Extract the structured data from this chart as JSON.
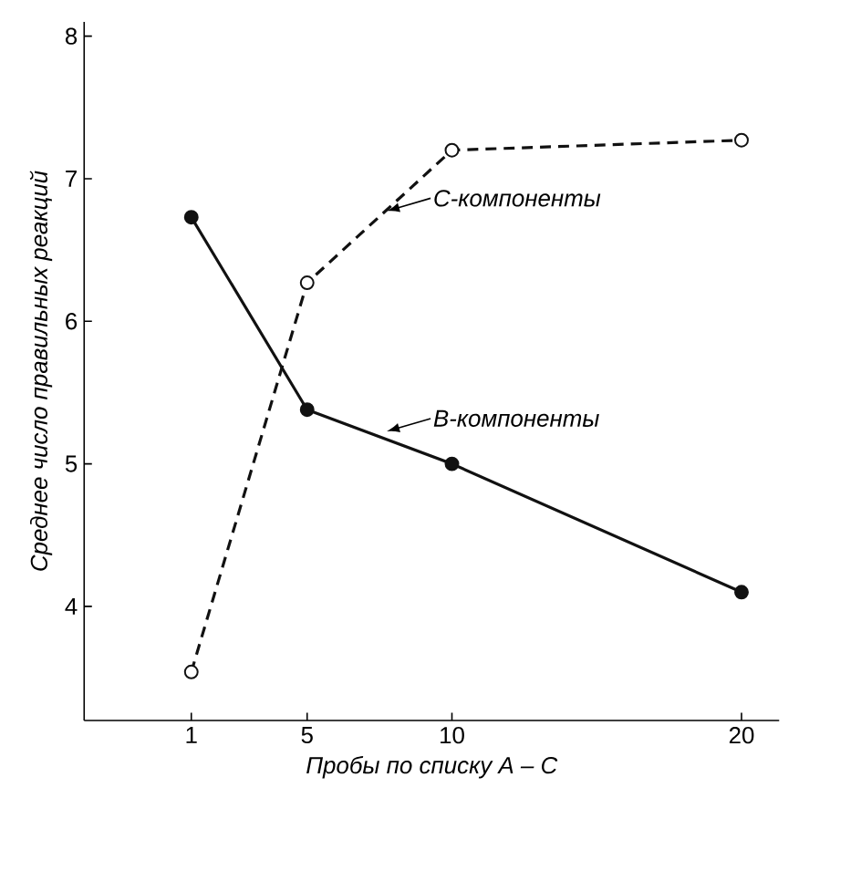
{
  "chart_data": {
    "type": "line",
    "xlabel": "Пробы по списку  А – С",
    "ylabel": "Среднее число правильных реакций",
    "xlim": [
      -2.7,
      21.3
    ],
    "ylim": [
      3.2,
      8.1
    ],
    "xticks": [
      1,
      5,
      10,
      20
    ],
    "yticks": [
      4,
      5,
      6,
      7,
      8
    ],
    "marker": "circle",
    "grid": false,
    "legend": false,
    "series": [
      {
        "name": "B-компоненты",
        "color": "#111111",
        "line_style": "solid",
        "x": [
          1,
          5,
          10,
          20
        ],
        "values": [
          6.73,
          5.38,
          5.0,
          4.1
        ]
      },
      {
        "name": "C-компоненты",
        "color": "#111111",
        "line_style": "dashed",
        "x": [
          1,
          5,
          10,
          20
        ],
        "values": [
          3.54,
          6.27,
          7.2,
          7.27
        ]
      }
    ]
  }
}
